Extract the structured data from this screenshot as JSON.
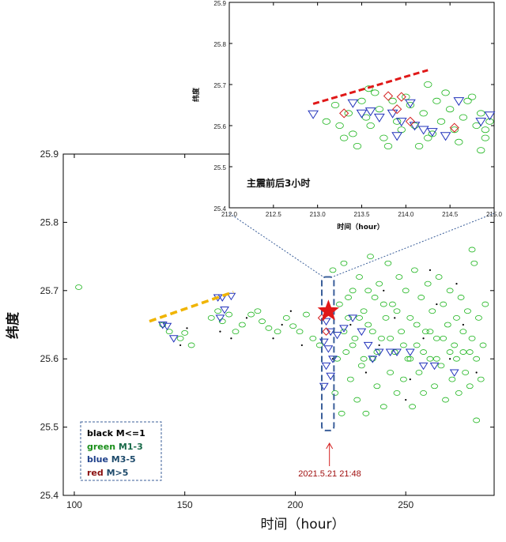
{
  "chart_data": [
    {
      "type": "scatter",
      "xlabel": "时间（hour）",
      "ylabel": "纬度",
      "xlim": [
        95,
        290
      ],
      "ylim": [
        25.4,
        25.9
      ],
      "x_ticks": [
        "100",
        "150",
        "200",
        "250"
      ],
      "y_ticks": [
        "25.4",
        "25.5",
        "25.6",
        "25.7",
        "25.8",
        "25.9"
      ],
      "legend_position": "bottom-left",
      "legend": [
        {
          "color_word": "black",
          "range": "M<=1"
        },
        {
          "color_word": "green",
          "range": "M1-3"
        },
        {
          "color_word": "blue",
          "range": "M3-5"
        },
        {
          "color_word": "red",
          "range": "M>5"
        }
      ],
      "annotation": "2021.5.21  21:48",
      "colors": {
        "black": "#000000",
        "green": "#1db51d",
        "blue": "#2233bb",
        "red": "#d42020",
        "trend": "#f0b400",
        "box": "#3b5f9a"
      },
      "trend_line": {
        "x": [
          134,
          172
        ],
        "y": [
          25.655,
          25.698
        ]
      },
      "mainshock": {
        "x": 215,
        "y": 25.67
      },
      "series": [
        {
          "name": "green M1-3",
          "marker": "circle",
          "points": [
            [
              102,
              25.705
            ],
            [
              140,
              25.65
            ],
            [
              143,
              25.64
            ],
            [
              148,
              25.63
            ],
            [
              150,
              25.638
            ],
            [
              153,
              25.62
            ],
            [
              162,
              25.66
            ],
            [
              165,
              25.67
            ],
            [
              167,
              25.655
            ],
            [
              170,
              25.665
            ],
            [
              173,
              25.64
            ],
            [
              176,
              25.65
            ],
            [
              180,
              25.665
            ],
            [
              183,
              25.67
            ],
            [
              185,
              25.655
            ],
            [
              188,
              25.645
            ],
            [
              192,
              25.64
            ],
            [
              196,
              25.66
            ],
            [
              199,
              25.648
            ],
            [
              202,
              25.64
            ],
            [
              205,
              25.665
            ],
            [
              208,
              25.63
            ],
            [
              211,
              25.62
            ],
            [
              217,
              25.73
            ],
            [
              218,
              25.55
            ],
            [
              219,
              25.6
            ],
            [
              220,
              25.68
            ],
            [
              221,
              25.52
            ],
            [
              222,
              25.74
            ],
            [
              223,
              25.61
            ],
            [
              224,
              25.66
            ],
            [
              225,
              25.57
            ],
            [
              226,
              25.7
            ],
            [
              227,
              25.63
            ],
            [
              228,
              25.54
            ],
            [
              229,
              25.72
            ],
            [
              230,
              25.59
            ],
            [
              231,
              25.67
            ],
            [
              232,
              25.52
            ],
            [
              233,
              25.65
            ],
            [
              234,
              25.75
            ],
            [
              235,
              25.6
            ],
            [
              236,
              25.69
            ],
            [
              237,
              25.56
            ],
            [
              238,
              25.71
            ],
            [
              239,
              25.63
            ],
            [
              240,
              25.53
            ],
            [
              241,
              25.66
            ],
            [
              242,
              25.74
            ],
            [
              243,
              25.58
            ],
            [
              244,
              25.68
            ],
            [
              245,
              25.61
            ],
            [
              246,
              25.55
            ],
            [
              247,
              25.72
            ],
            [
              248,
              25.64
            ],
            [
              249,
              25.57
            ],
            [
              250,
              25.7
            ],
            [
              251,
              25.6
            ],
            [
              252,
              25.66
            ],
            [
              253,
              25.53
            ],
            [
              254,
              25.73
            ],
            [
              255,
              25.62
            ],
            [
              256,
              25.58
            ],
            [
              257,
              25.69
            ],
            [
              258,
              25.55
            ],
            [
              259,
              25.64
            ],
            [
              260,
              25.71
            ],
            [
              261,
              25.6
            ],
            [
              262,
              25.67
            ],
            [
              263,
              25.56
            ],
            [
              264,
              25.63
            ],
            [
              265,
              25.72
            ],
            [
              266,
              25.59
            ],
            [
              267,
              25.68
            ],
            [
              268,
              25.54
            ],
            [
              269,
              25.65
            ],
            [
              270,
              25.7
            ],
            [
              271,
              25.57
            ],
            [
              272,
              25.62
            ],
            [
              273,
              25.66
            ],
            [
              274,
              25.55
            ],
            [
              275,
              25.69
            ],
            [
              276,
              25.61
            ],
            [
              277,
              25.58
            ],
            [
              278,
              25.67
            ],
            [
              279,
              25.56
            ],
            [
              280,
              25.63
            ],
            [
              281,
              25.74
            ],
            [
              282,
              25.6
            ],
            [
              283,
              25.66
            ],
            [
              284,
              25.57
            ],
            [
              285,
              25.62
            ],
            [
              286,
              25.68
            ],
            [
              282,
              25.51
            ],
            [
              280,
              25.76
            ],
            [
              222,
              25.64
            ],
            [
              224,
              25.69
            ],
            [
              226,
              25.62
            ],
            [
              229,
              25.66
            ],
            [
              231,
              25.6
            ],
            [
              233,
              25.7
            ],
            [
              235,
              25.64
            ],
            [
              237,
              25.61
            ],
            [
              240,
              25.68
            ],
            [
              243,
              25.63
            ],
            [
              246,
              25.67
            ],
            [
              249,
              25.62
            ],
            [
              252,
              25.6
            ],
            [
              255,
              25.65
            ],
            [
              258,
              25.61
            ],
            [
              261,
              25.64
            ],
            [
              264,
              25.6
            ],
            [
              267,
              25.63
            ],
            [
              270,
              25.61
            ],
            [
              273,
              25.6
            ],
            [
              276,
              25.64
            ],
            [
              279,
              25.61
            ]
          ]
        },
        {
          "name": "black M<=1",
          "marker": "dot",
          "points": [
            [
              148,
              25.62
            ],
            [
              151,
              25.645
            ],
            [
              166,
              25.64
            ],
            [
              171,
              25.63
            ],
            [
              178,
              25.66
            ],
            [
              190,
              25.63
            ],
            [
              194,
              25.65
            ],
            [
              198,
              25.67
            ],
            [
              203,
              25.62
            ],
            [
              217,
              25.6
            ],
            [
              225,
              25.65
            ],
            [
              232,
              25.58
            ],
            [
              238,
              25.62
            ],
            [
              245,
              25.66
            ],
            [
              252,
              25.57
            ],
            [
              258,
              25.63
            ],
            [
              264,
              25.68
            ],
            [
              270,
              25.6
            ],
            [
              276,
              25.65
            ],
            [
              282,
              25.58
            ],
            [
              261,
              25.73
            ],
            [
              273,
              25.71
            ],
            [
              240,
              25.7
            ],
            [
              250,
              25.54
            ]
          ]
        },
        {
          "name": "blue M3-5",
          "marker": "triangle-down",
          "points": [
            [
              140,
              25.65
            ],
            [
              142,
              25.648
            ],
            [
              145,
              25.63
            ],
            [
              165,
              25.69
            ],
            [
              167,
              25.69
            ],
            [
              168,
              25.672
            ],
            [
              171,
              25.692
            ],
            [
              166,
              25.66
            ],
            [
              214,
              25.655
            ],
            [
              216,
              25.64
            ],
            [
              213,
              25.625
            ],
            [
              215,
              25.615
            ],
            [
              217,
              25.6
            ],
            [
              214,
              25.59
            ],
            [
              216,
              25.575
            ],
            [
              213,
              25.56
            ],
            [
              226,
              25.66
            ],
            [
              230,
              25.64
            ],
            [
              233,
              25.62
            ],
            [
              235,
              25.6
            ],
            [
              238,
              25.61
            ],
            [
              243,
              25.61
            ],
            [
              246,
              25.61
            ],
            [
              252,
              25.61
            ],
            [
              258,
              25.59
            ],
            [
              263,
              25.59
            ],
            [
              272,
              25.58
            ],
            [
              219,
              25.635
            ],
            [
              222,
              25.645
            ]
          ]
        },
        {
          "name": "red M>5",
          "marker": "diamond",
          "points": [
            [
              212,
              25.66
            ],
            [
              214,
              25.64
            ]
          ]
        }
      ]
    },
    {
      "type": "scatter",
      "title": "主震前后3小时",
      "xlabel": "时间（hour）",
      "ylabel": "纬度",
      "xlim": [
        212.0,
        215.0
      ],
      "ylim": [
        25.4,
        25.9
      ],
      "x_ticks": [
        "212.0",
        "212.5",
        "213.0",
        "213.5",
        "214.0",
        "214.5",
        "215.0"
      ],
      "y_ticks": [
        "25.4",
        "25.5",
        "25.6",
        "25.7",
        "25.8",
        "25.9"
      ],
      "trend_line": {
        "x": [
          212.95,
          214.25
        ],
        "y": [
          25.653,
          25.735
        ]
      },
      "series": [
        {
          "name": "green M1-3",
          "marker": "circle",
          "points": [
            [
              213.1,
              25.61
            ],
            [
              213.2,
              25.65
            ],
            [
              213.25,
              25.6
            ],
            [
              213.35,
              25.63
            ],
            [
              213.4,
              25.58
            ],
            [
              213.5,
              25.66
            ],
            [
              213.55,
              25.62
            ],
            [
              213.6,
              25.6
            ],
            [
              213.7,
              25.64
            ],
            [
              213.75,
              25.57
            ],
            [
              213.85,
              25.66
            ],
            [
              213.9,
              25.61
            ],
            [
              213.95,
              25.59
            ],
            [
              214.05,
              25.65
            ],
            [
              214.1,
              25.6
            ],
            [
              214.2,
              25.63
            ],
            [
              214.25,
              25.57
            ],
            [
              214.35,
              25.66
            ],
            [
              214.4,
              25.61
            ],
            [
              214.5,
              25.64
            ],
            [
              214.55,
              25.59
            ],
            [
              214.65,
              25.62
            ],
            [
              214.7,
              25.66
            ],
            [
              214.8,
              25.6
            ],
            [
              214.85,
              25.63
            ],
            [
              214.9,
              25.57
            ],
            [
              214.95,
              25.61
            ],
            [
              213.45,
              25.55
            ],
            [
              213.8,
              25.55
            ],
            [
              214.15,
              25.55
            ],
            [
              214.6,
              25.56
            ],
            [
              213.65,
              25.68
            ],
            [
              214.0,
              25.67
            ],
            [
              214.45,
              25.68
            ],
            [
              214.75,
              25.67
            ],
            [
              213.3,
              25.57
            ],
            [
              214.3,
              25.58
            ],
            [
              214.85,
              25.54
            ],
            [
              213.58,
              25.69
            ],
            [
              214.25,
              25.7
            ],
            [
              214.9,
              25.59
            ]
          ]
        },
        {
          "name": "blue M3-5",
          "marker": "triangle-down",
          "points": [
            [
              212.95,
              25.628
            ],
            [
              213.4,
              25.655
            ],
            [
              213.5,
              25.63
            ],
            [
              213.6,
              25.635
            ],
            [
              213.7,
              25.62
            ],
            [
              213.85,
              25.63
            ],
            [
              214.05,
              25.655
            ],
            [
              213.95,
              25.61
            ],
            [
              214.1,
              25.6
            ],
            [
              214.2,
              25.59
            ],
            [
              214.3,
              25.585
            ],
            [
              214.45,
              25.575
            ],
            [
              213.9,
              25.575
            ],
            [
              214.6,
              25.66
            ],
            [
              214.95,
              25.625
            ],
            [
              214.85,
              25.61
            ]
          ]
        },
        {
          "name": "red M>5",
          "marker": "diamond",
          "points": [
            [
              213.8,
              25.672
            ],
            [
              213.95,
              25.67
            ],
            [
              213.9,
              25.64
            ],
            [
              213.3,
              25.63
            ],
            [
              214.55,
              25.595
            ],
            [
              214.05,
              25.61
            ]
          ]
        }
      ]
    }
  ]
}
